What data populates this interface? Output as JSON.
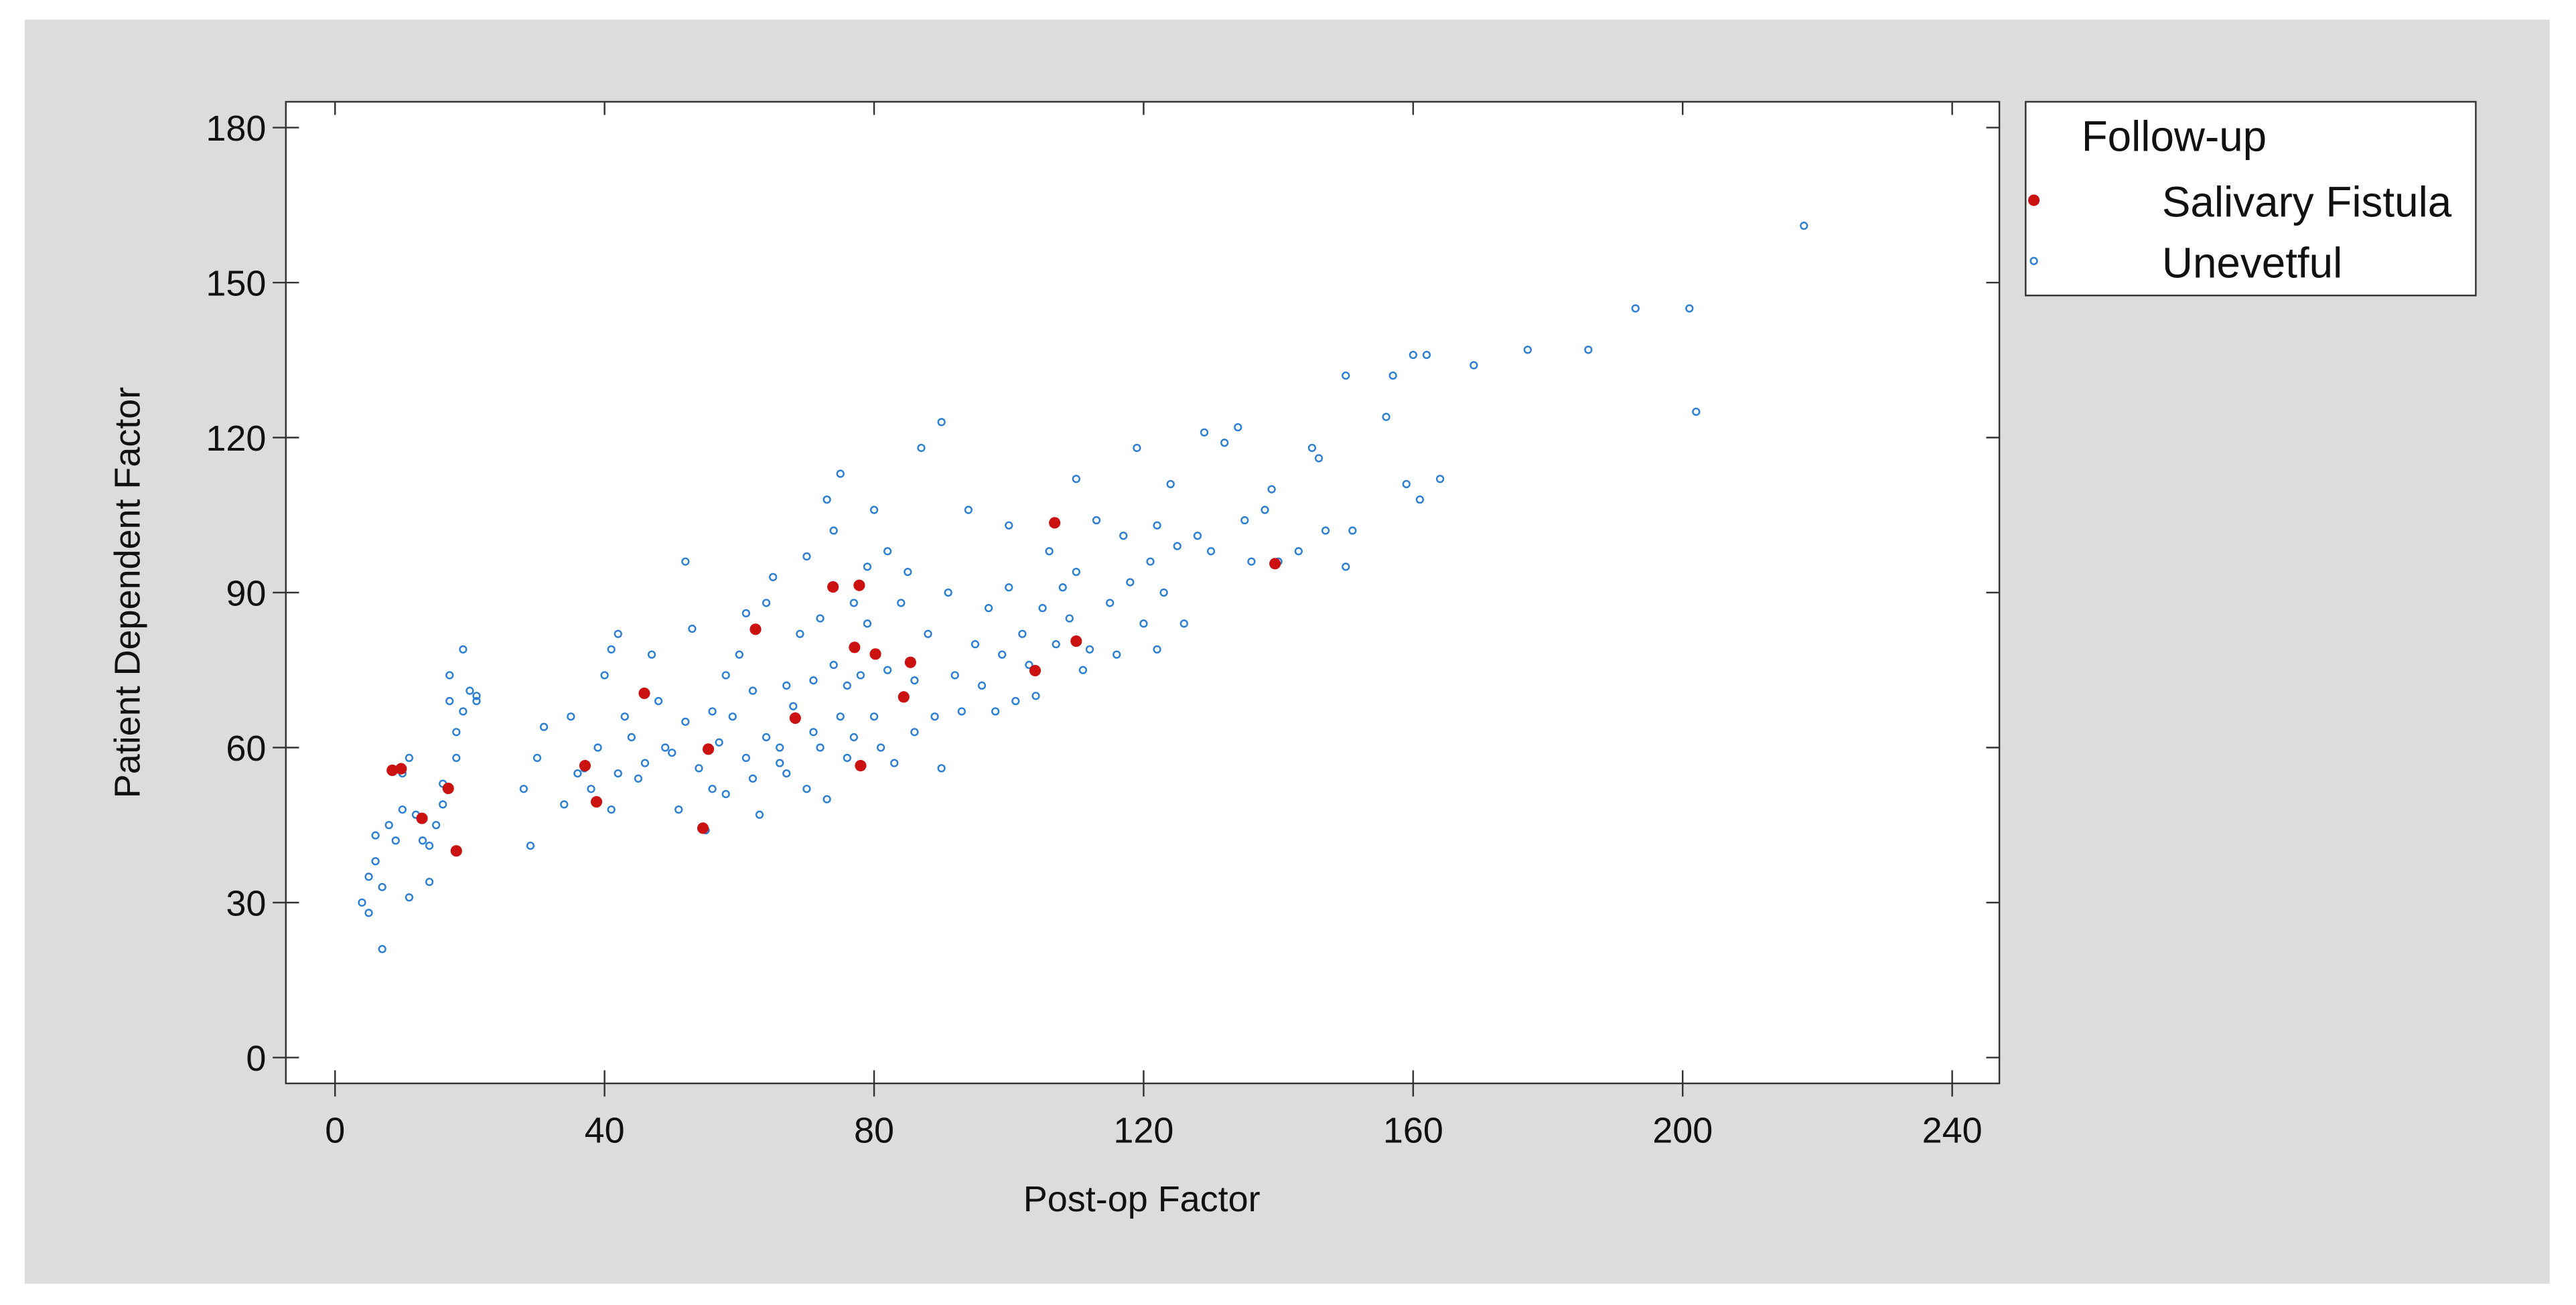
{
  "chart_data": {
    "type": "scatter",
    "xlabel": "Post-op Factor",
    "ylabel": "Patient Dependent Factor",
    "legend_title": "Follow-up",
    "legend": "outside-right",
    "xlim": [
      -7.3,
      247
    ],
    "ylim": [
      -5,
      185
    ],
    "xticks": [
      0,
      40,
      80,
      120,
      160,
      200,
      240
    ],
    "yticks": [
      0,
      30,
      60,
      90,
      120,
      150,
      180
    ],
    "series": [
      {
        "name": "Salivary Fistula",
        "color": "#cc1111",
        "marker": "filled",
        "x": [
          8.5,
          9.8,
          12.9,
          16.8,
          18.0,
          37.1,
          38.8,
          45.9,
          54.6,
          55.4,
          62.4,
          68.3,
          73.9,
          77.1,
          77.8,
          80.2,
          84.4,
          85.4,
          78.0,
          103.9,
          106.8,
          110.0,
          139.5
        ],
        "values": [
          55.6,
          55.9,
          46.3,
          52.1,
          40.0,
          56.5,
          49.5,
          70.5,
          44.4,
          59.7,
          82.9,
          65.7,
          91.1,
          79.4,
          91.4,
          78.1,
          69.8,
          76.5,
          56.5,
          74.9,
          103.5,
          80.6,
          95.6
        ]
      },
      {
        "name": "Unevetful",
        "color": "#2a7fd4",
        "marker": "hollow",
        "x": [
          4,
          5,
          5,
          6,
          6,
          7,
          7,
          8,
          9,
          10,
          10,
          11,
          11,
          12,
          13,
          14,
          14,
          15,
          16,
          16,
          17,
          17,
          18,
          18,
          19,
          19,
          20,
          21,
          21,
          28,
          29,
          30,
          31,
          34,
          35,
          36,
          37,
          38,
          39,
          40,
          41,
          41,
          42,
          42,
          43,
          44,
          45,
          46,
          47,
          48,
          49,
          50,
          51,
          52,
          52,
          53,
          54,
          55,
          56,
          56,
          57,
          58,
          58,
          59,
          60,
          61,
          61,
          62,
          62,
          63,
          64,
          64,
          65,
          66,
          66,
          67,
          67,
          68,
          69,
          70,
          70,
          71,
          71,
          72,
          72,
          73,
          73,
          74,
          74,
          75,
          75,
          76,
          76,
          77,
          77,
          78,
          79,
          79,
          80,
          80,
          81,
          82,
          82,
          83,
          84,
          85,
          86,
          86,
          87,
          88,
          89,
          90,
          90,
          91,
          92,
          93,
          94,
          95,
          96,
          97,
          98,
          99,
          100,
          100,
          101,
          102,
          103,
          104,
          105,
          106,
          107,
          108,
          109,
          110,
          110,
          111,
          112,
          113,
          115,
          116,
          117,
          118,
          119,
          120,
          121,
          122,
          122,
          123,
          124,
          125,
          126,
          128,
          129,
          130,
          132,
          134,
          135,
          136,
          138,
          139,
          140,
          143,
          145,
          146,
          147,
          150,
          150,
          151,
          156,
          157,
          159,
          160,
          161,
          162,
          164,
          169,
          177,
          186,
          193,
          201,
          202,
          218
        ],
        "values": [
          30,
          28,
          35,
          38,
          43,
          21,
          33,
          45,
          42,
          48,
          55,
          58,
          31,
          47,
          42,
          34,
          41,
          45,
          49,
          53,
          69,
          74,
          58,
          63,
          79,
          67,
          71,
          69,
          70,
          52,
          41,
          58,
          64,
          49,
          66,
          55,
          56,
          52,
          60,
          74,
          48,
          79,
          55,
          82,
          66,
          62,
          54,
          57,
          78,
          69,
          60,
          59,
          48,
          96,
          65,
          83,
          56,
          44,
          67,
          52,
          61,
          74,
          51,
          66,
          78,
          58,
          86,
          71,
          54,
          47,
          62,
          88,
          93,
          60,
          57,
          72,
          55,
          68,
          82,
          97,
          52,
          63,
          73,
          85,
          60,
          108,
          50,
          76,
          102,
          66,
          113,
          72,
          58,
          88,
          62,
          74,
          95,
          84,
          66,
          106,
          60,
          98,
          75,
          57,
          88,
          94,
          73,
          63,
          118,
          82,
          66,
          123,
          56,
          90,
          74,
          67,
          106,
          80,
          72,
          87,
          67,
          78,
          91,
          103,
          69,
          82,
          76,
          70,
          87,
          98,
          80,
          91,
          85,
          112,
          94,
          75,
          79,
          104,
          88,
          78,
          101,
          92,
          118,
          84,
          96,
          79,
          103,
          90,
          111,
          99,
          84,
          101,
          121,
          98,
          119,
          122,
          104,
          96,
          106,
          110,
          96,
          98,
          118,
          116,
          102,
          132,
          95,
          102,
          124,
          132,
          111,
          136,
          108,
          136,
          112,
          134,
          137,
          137,
          145,
          145,
          125,
          161
        ]
      }
    ]
  }
}
